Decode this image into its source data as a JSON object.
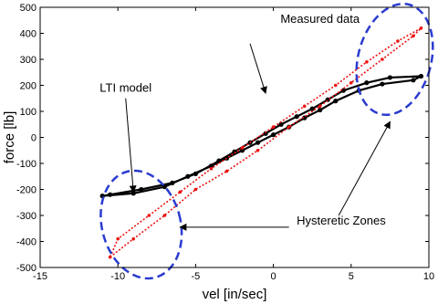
{
  "chart_data": {
    "type": "scatter",
    "title": "",
    "xlabel": "vel [in/sec]",
    "ylabel": "force [lb]",
    "xlim": [
      -15,
      10
    ],
    "ylim": [
      -500,
      500
    ],
    "xticks": [
      -15,
      -10,
      -5,
      0,
      5,
      10
    ],
    "yticks": [
      -500,
      -400,
      -300,
      -200,
      -100,
      0,
      100,
      200,
      300,
      400,
      500
    ],
    "grid": false,
    "series": [
      {
        "name": "Measured data",
        "color": "#000000",
        "x": [
          -11.0,
          -9.0,
          -7.0,
          -5.5,
          -4.0,
          -3.0,
          -2.0,
          -1.0,
          0.0,
          1.0,
          2.0,
          3.0,
          4.0,
          5.5,
          7.0,
          9.0,
          9.5,
          7.5,
          6.0,
          4.5,
          3.5,
          2.5,
          1.5,
          0.5,
          -0.5,
          -1.5,
          -2.5,
          -3.5,
          -5.0,
          -6.5,
          -8.5,
          -10.5
        ],
        "y": [
          -225,
          -215,
          -190,
          -150,
          -110,
          -80,
          -50,
          -20,
          10,
          40,
          75,
          105,
          140,
          180,
          205,
          220,
          235,
          230,
          210,
          180,
          145,
          110,
          80,
          50,
          15,
          -20,
          -55,
          -90,
          -140,
          -175,
          -200,
          -220
        ]
      },
      {
        "name": "LTI model",
        "color": "#ee1111",
        "x": [
          -10.5,
          -9.0,
          -7.0,
          -5.0,
          -3.0,
          -1.0,
          1.0,
          3.0,
          5.0,
          7.0,
          9.0,
          9.5,
          8.0,
          6.0,
          4.0,
          2.0,
          0.0,
          -2.0,
          -4.0,
          -6.0,
          -8.0,
          -10.0
        ],
        "y": [
          -460,
          -390,
          -300,
          -200,
          -130,
          -50,
          40,
          120,
          210,
          300,
          390,
          420,
          370,
          290,
          200,
          120,
          40,
          -40,
          -120,
          -210,
          -300,
          -390
        ]
      }
    ],
    "annotations": [
      {
        "text": "Measured data",
        "x": 3.0,
        "y": 440
      },
      {
        "text": "LTI model",
        "x": -9.5,
        "y": 175
      },
      {
        "text": "Hysteretic Zones",
        "x": 1.5,
        "y": -335
      }
    ]
  }
}
